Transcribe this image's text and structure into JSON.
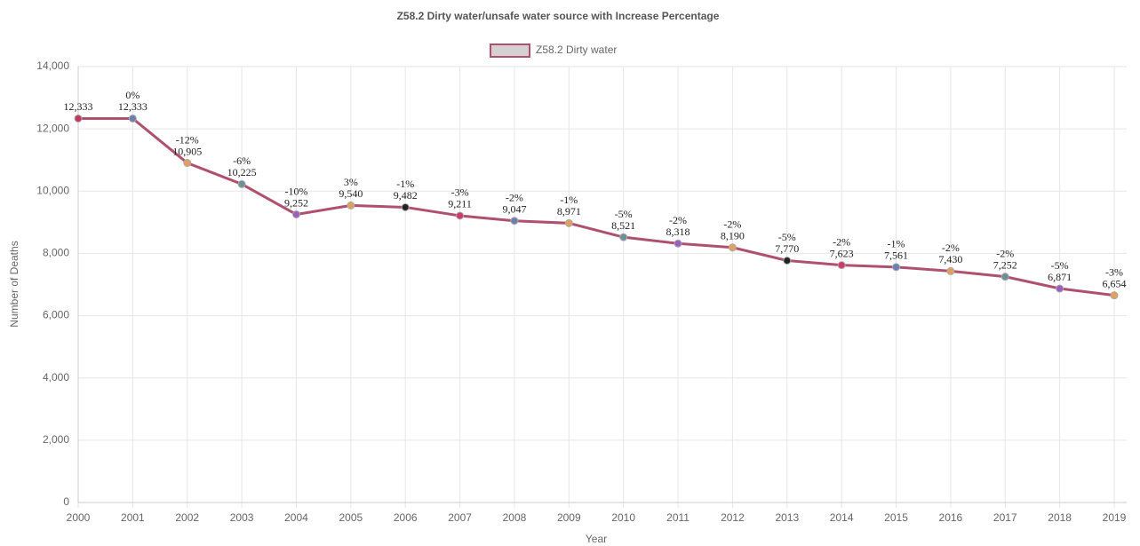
{
  "chart_data": {
    "type": "line",
    "title": "Z58.2 Dirty water/unsafe water source with Increase Percentage",
    "x_label": "Year",
    "y_label": "Number of Deaths",
    "categories": [
      "2000",
      "2001",
      "2002",
      "2003",
      "2004",
      "2005",
      "2006",
      "2007",
      "2008",
      "2009",
      "2010",
      "2011",
      "2012",
      "2013",
      "2014",
      "2015",
      "2016",
      "2017",
      "2018",
      "2019"
    ],
    "series": [
      {
        "name": "Z58.2 Dirty water",
        "color": "#b0506f",
        "legend_fill": "#d6d0d2",
        "values": [
          12333,
          12333,
          10905,
          10225,
          9252,
          9540,
          9482,
          9211,
          9047,
          8971,
          8521,
          8318,
          8190,
          7770,
          7623,
          7561,
          7430,
          7252,
          6871,
          6654
        ],
        "value_labels": [
          "12,333",
          "12,333",
          "10,905",
          "10,225",
          "9,252",
          "9,540",
          "9,482",
          "9,211",
          "9,047",
          "8,971",
          "8,521",
          "8,318",
          "8,190",
          "7,770",
          "7,623",
          "7,561",
          "7,430",
          "7,252",
          "6,871",
          "6,654"
        ],
        "annotations": [
          null,
          "0%",
          "-12%",
          "-6%",
          "-10%",
          "3%",
          "-1%",
          "-3%",
          "-2%",
          "-1%",
          "-5%",
          "-2%",
          "-2%",
          "-5%",
          "-2%",
          "-1%",
          "-2%",
          "-2%",
          "-5%",
          "-3%"
        ],
        "point_colors": [
          "#c0395f",
          "#6b7fb0",
          "#e0a060",
          "#6b909a",
          "#9b5fc0",
          "#e0a060",
          "#222222",
          "#d03a6a",
          "#6b7fb0",
          "#e0a060",
          "#6b909a",
          "#9b5fc0",
          "#e0a060",
          "#222222",
          "#d03a6a",
          "#6b7fb0",
          "#e0a060",
          "#6b909a",
          "#9b5fc0",
          "#e0a060"
        ]
      }
    ],
    "ylim": [
      0,
      14000
    ],
    "yticks": [
      0,
      {
        "value": 2000,
        "label": "2,000"
      },
      {
        "value": 4000,
        "label": "4,000"
      },
      {
        "value": 6000,
        "label": "6,000"
      },
      {
        "value": 8000,
        "label": "8,000"
      },
      {
        "value": 10000,
        "label": "10,000"
      },
      {
        "value": 12000,
        "label": "12,000"
      },
      {
        "value": 14000,
        "label": "14,000"
      }
    ],
    "grid": true
  }
}
